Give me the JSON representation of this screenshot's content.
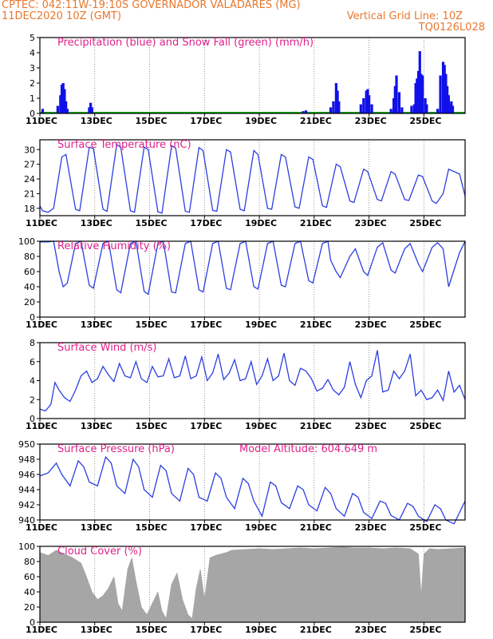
{
  "header": {
    "line1_left": "CPTEC:  042:11W-19:10S  GOVERNADOR VALADARES (MG)",
    "line2_left": "11DEC2020 10Z (GMT)",
    "line2_right": "Vertical Grid Line: 10Z",
    "line3_right": "TQ0126L028"
  },
  "colors": {
    "header": "#e8772e",
    "title": "#e0218a",
    "line": "#2b3fe0",
    "precip": "#1010e8",
    "snow": "#10b010",
    "cloud": "#a6a6a6",
    "grid": "#555555"
  },
  "x_axis": {
    "start_day": 11,
    "end_day": 26.5,
    "tick_labels": [
      "11DEC",
      "13DEC",
      "15DEC",
      "17DEC",
      "19DEC",
      "21DEC",
      "23DEC",
      "25DEC"
    ]
  },
  "chart_data": [
    {
      "id": "precip",
      "type": "bar",
      "title": "Precipitation (blue) and Snow Fall (green) (mm/h)",
      "ylim": [
        0,
        5
      ],
      "yticks": [
        "0",
        "1",
        "2",
        "3",
        "4",
        "5"
      ],
      "snow_value": 0,
      "x": [
        11.1,
        11.65,
        11.75,
        11.8,
        11.85,
        11.9,
        11.95,
        12.0,
        12.8,
        12.85,
        12.9,
        20.6,
        20.7,
        21.6,
        21.7,
        21.8,
        21.85,
        21.9,
        22.7,
        22.8,
        22.9,
        22.95,
        23.0,
        23.1,
        23.8,
        23.9,
        23.95,
        24.0,
        24.1,
        24.2,
        24.55,
        24.65,
        24.7,
        24.75,
        24.8,
        24.85,
        24.9,
        24.95,
        25.05,
        25.1,
        25.5,
        25.6,
        25.7,
        25.75,
        25.8,
        25.85,
        25.9,
        25.95,
        26.0,
        26.05
      ],
      "values": [
        0.3,
        0.5,
        1.2,
        1.9,
        2.0,
        1.6,
        0.8,
        0.3,
        0.4,
        0.7,
        0.4,
        0.15,
        0.2,
        0.4,
        0.8,
        2.0,
        1.5,
        0.8,
        0.6,
        1.0,
        1.5,
        1.6,
        1.2,
        0.6,
        0.3,
        1.0,
        1.8,
        2.5,
        1.4,
        0.4,
        0.5,
        0.6,
        2.0,
        2.3,
        2.8,
        4.1,
        2.6,
        2.5,
        1.0,
        0.6,
        0.3,
        2.5,
        3.4,
        3.2,
        2.6,
        1.8,
        1.2,
        0.6,
        0.8,
        0.5
      ]
    },
    {
      "id": "temp",
      "type": "line",
      "title": "Surface Temperature (nC)",
      "ylim": [
        16.5,
        32
      ],
      "yticks": [
        "18",
        "21",
        "24",
        "27",
        "30"
      ],
      "ytick_values": [
        18,
        21,
        24,
        27,
        30
      ],
      "x": [
        11.0,
        11.1,
        11.3,
        11.5,
        11.7,
        11.8,
        11.95,
        12.3,
        12.45,
        12.8,
        12.95,
        13.3,
        13.45,
        13.8,
        13.95,
        14.3,
        14.45,
        14.8,
        14.95,
        15.3,
        15.45,
        15.8,
        15.95,
        16.3,
        16.45,
        16.8,
        16.95,
        17.3,
        17.45,
        17.8,
        17.95,
        18.3,
        18.45,
        18.8,
        18.95,
        19.3,
        19.45,
        19.8,
        19.95,
        20.3,
        20.45,
        20.8,
        20.95,
        21.3,
        21.45,
        21.8,
        21.95,
        22.3,
        22.45,
        22.8,
        22.95,
        23.3,
        23.45,
        23.8,
        23.95,
        24.3,
        24.45,
        24.8,
        24.95,
        25.3,
        25.45,
        25.7,
        25.9,
        26.3,
        26.5
      ],
      "values": [
        18.5,
        17.5,
        17.2,
        18.0,
        25.0,
        28.5,
        29.0,
        17.8,
        17.5,
        30.5,
        30.2,
        17.8,
        17.4,
        31.0,
        30.5,
        17.5,
        17.2,
        30.5,
        30.0,
        17.3,
        17.0,
        30.8,
        30.3,
        17.4,
        17.2,
        30.4,
        29.8,
        17.6,
        17.4,
        30.0,
        29.5,
        17.8,
        17.5,
        29.8,
        29.0,
        18.0,
        17.8,
        29.0,
        28.5,
        18.3,
        18.0,
        28.5,
        28.0,
        18.5,
        18.2,
        27.0,
        26.5,
        19.5,
        19.2,
        26.0,
        25.5,
        19.8,
        19.5,
        25.5,
        25.0,
        19.8,
        19.6,
        24.8,
        24.5,
        19.5,
        19.0,
        21.0,
        26.0,
        25.0,
        20.5
      ]
    },
    {
      "id": "rh",
      "type": "line",
      "title": "Relative Humidity (%)",
      "ylim": [
        0,
        100
      ],
      "yticks": [
        "0",
        "20",
        "40",
        "60",
        "80",
        "100"
      ],
      "ytick_values": [
        0,
        20,
        40,
        60,
        80,
        100
      ],
      "x": [
        11.0,
        11.3,
        11.5,
        11.7,
        11.85,
        12.0,
        12.3,
        12.5,
        12.8,
        12.95,
        13.3,
        13.5,
        13.8,
        13.95,
        14.3,
        14.5,
        14.8,
        14.95,
        15.3,
        15.5,
        15.8,
        15.95,
        16.3,
        16.5,
        16.8,
        16.95,
        17.3,
        17.5,
        17.8,
        17.95,
        18.3,
        18.5,
        18.8,
        18.95,
        19.3,
        19.5,
        19.8,
        19.95,
        20.3,
        20.5,
        20.8,
        20.95,
        21.3,
        21.5,
        21.6,
        21.8,
        21.95,
        22.3,
        22.5,
        22.8,
        22.95,
        23.3,
        23.5,
        23.8,
        23.95,
        24.3,
        24.5,
        24.8,
        24.95,
        25.3,
        25.5,
        25.7,
        25.9,
        26.3,
        26.5
      ],
      "values": [
        99,
        99,
        100,
        60,
        40,
        45,
        97,
        100,
        42,
        38,
        97,
        100,
        36,
        32,
        97,
        100,
        34,
        30,
        97,
        100,
        33,
        32,
        97,
        100,
        36,
        33,
        97,
        100,
        38,
        36,
        97,
        100,
        40,
        37,
        97,
        100,
        42,
        40,
        97,
        100,
        48,
        45,
        97,
        100,
        75,
        60,
        52,
        80,
        90,
        60,
        55,
        92,
        98,
        62,
        58,
        90,
        97,
        70,
        60,
        92,
        98,
        90,
        40,
        85,
        100
      ]
    },
    {
      "id": "wind",
      "type": "line",
      "title": "Surface Wind (m/s)",
      "ylim": [
        0,
        8
      ],
      "yticks": [
        "0",
        "2",
        "4",
        "6",
        "8"
      ],
      "ytick_values": [
        0,
        2,
        4,
        6,
        8
      ],
      "x": [
        11.0,
        11.2,
        11.4,
        11.55,
        11.7,
        11.9,
        12.1,
        12.3,
        12.5,
        12.7,
        12.9,
        13.1,
        13.3,
        13.5,
        13.7,
        13.9,
        14.1,
        14.3,
        14.5,
        14.7,
        14.9,
        15.1,
        15.3,
        15.5,
        15.7,
        15.9,
        16.1,
        16.3,
        16.5,
        16.7,
        16.9,
        17.1,
        17.3,
        17.5,
        17.7,
        17.9,
        18.1,
        18.3,
        18.5,
        18.7,
        18.9,
        19.1,
        19.3,
        19.5,
        19.7,
        19.9,
        20.1,
        20.3,
        20.5,
        20.7,
        20.9,
        21.1,
        21.3,
        21.5,
        21.7,
        21.9,
        22.1,
        22.3,
        22.5,
        22.7,
        22.9,
        23.1,
        23.3,
        23.5,
        23.7,
        23.9,
        24.1,
        24.3,
        24.5,
        24.7,
        24.9,
        25.1,
        25.3,
        25.5,
        25.7,
        25.9,
        26.1,
        26.3,
        26.5
      ],
      "values": [
        1.0,
        0.8,
        1.5,
        3.8,
        3.0,
        2.2,
        1.8,
        3.0,
        4.5,
        5.0,
        3.8,
        4.2,
        5.5,
        4.6,
        3.9,
        5.8,
        4.5,
        4.3,
        6.0,
        4.2,
        3.8,
        5.5,
        4.4,
        4.5,
        6.3,
        4.3,
        4.5,
        6.6,
        4.2,
        4.5,
        6.5,
        4.0,
        4.8,
        6.8,
        4.1,
        4.8,
        6.2,
        4.0,
        4.2,
        6.0,
        3.6,
        4.5,
        6.3,
        4.0,
        4.5,
        6.9,
        4.0,
        3.5,
        5.3,
        5.0,
        4.2,
        2.9,
        3.2,
        4.1,
        3.0,
        2.5,
        3.3,
        6.0,
        3.6,
        2.2,
        4.0,
        4.5,
        7.2,
        2.8,
        3.0,
        5.0,
        4.2,
        5.0,
        6.8,
        2.4,
        3.0,
        2.0,
        2.2,
        3.0,
        1.9,
        5.0,
        2.8,
        3.5,
        2.0
      ]
    },
    {
      "id": "pressure",
      "type": "line",
      "title": "Surface Pressure (hPa)",
      "subtitle": "Model Altitude: 604.649 m",
      "ylim": [
        940,
        950
      ],
      "yticks": [
        "940",
        "942",
        "944",
        "946",
        "948",
        "950"
      ],
      "ytick_values": [
        940,
        942,
        944,
        946,
        948,
        950
      ],
      "x": [
        11.0,
        11.3,
        11.6,
        11.8,
        12.1,
        12.4,
        12.6,
        12.8,
        13.1,
        13.4,
        13.6,
        13.8,
        14.1,
        14.4,
        14.6,
        14.8,
        15.1,
        15.4,
        15.6,
        15.8,
        16.1,
        16.4,
        16.6,
        16.8,
        17.1,
        17.4,
        17.6,
        17.8,
        18.1,
        18.4,
        18.6,
        18.8,
        19.1,
        19.4,
        19.6,
        19.8,
        20.1,
        20.4,
        20.6,
        20.8,
        21.1,
        21.4,
        21.6,
        21.8,
        22.1,
        22.4,
        22.6,
        22.8,
        23.1,
        23.4,
        23.6,
        23.8,
        24.1,
        24.4,
        24.6,
        24.8,
        25.1,
        25.4,
        25.6,
        25.8,
        26.1,
        26.3,
        26.5
      ],
      "values": [
        945.8,
        946.2,
        947.5,
        946.0,
        944.5,
        947.8,
        947.0,
        945.0,
        944.5,
        948.3,
        947.5,
        944.5,
        943.5,
        948.0,
        947.0,
        944.0,
        943.0,
        947.2,
        946.5,
        943.5,
        942.5,
        946.8,
        946.0,
        943.0,
        942.5,
        946.2,
        945.5,
        943.0,
        941.5,
        945.5,
        944.8,
        942.5,
        940.5,
        945.0,
        944.5,
        942.3,
        941.5,
        944.5,
        944.0,
        942.0,
        941.2,
        944.3,
        943.5,
        941.5,
        940.5,
        943.5,
        943.0,
        941.0,
        940.2,
        942.5,
        942.2,
        940.6,
        940.0,
        942.2,
        941.8,
        940.5,
        939.8,
        942.0,
        941.5,
        940.0,
        939.5,
        941.0,
        942.5
      ]
    },
    {
      "id": "cloud",
      "type": "area",
      "title": "Cloud Cover (%)",
      "ylim": [
        0,
        100
      ],
      "yticks": [
        "0",
        "20",
        "40",
        "60",
        "80",
        "100"
      ],
      "ytick_values": [
        0,
        20,
        40,
        60,
        80,
        100
      ],
      "x": [
        11.0,
        11.3,
        11.6,
        11.9,
        12.2,
        12.5,
        12.7,
        12.9,
        13.1,
        13.3,
        13.5,
        13.7,
        13.85,
        14.0,
        14.2,
        14.35,
        14.5,
        14.7,
        14.9,
        15.1,
        15.3,
        15.45,
        15.6,
        15.8,
        16.0,
        16.2,
        16.4,
        16.55,
        16.7,
        16.85,
        17.0,
        17.2,
        17.4,
        17.6,
        17.8,
        18.0,
        18.5,
        19.0,
        19.5,
        20.0,
        20.5,
        21.0,
        21.5,
        22.0,
        22.5,
        23.0,
        23.5,
        24.0,
        24.5,
        24.8,
        24.9,
        25.0,
        25.2,
        25.5,
        26.0,
        26.5
      ],
      "values": [
        92,
        88,
        95,
        90,
        85,
        78,
        60,
        40,
        30,
        35,
        45,
        60,
        25,
        15,
        70,
        85,
        55,
        20,
        10,
        25,
        40,
        15,
        5,
        50,
        65,
        30,
        10,
        5,
        45,
        70,
        30,
        85,
        88,
        90,
        92,
        95,
        96,
        97,
        96,
        97,
        98,
        97,
        98,
        99,
        98,
        98,
        97,
        98,
        97,
        90,
        35,
        90,
        97,
        96,
        97,
        98
      ]
    }
  ]
}
